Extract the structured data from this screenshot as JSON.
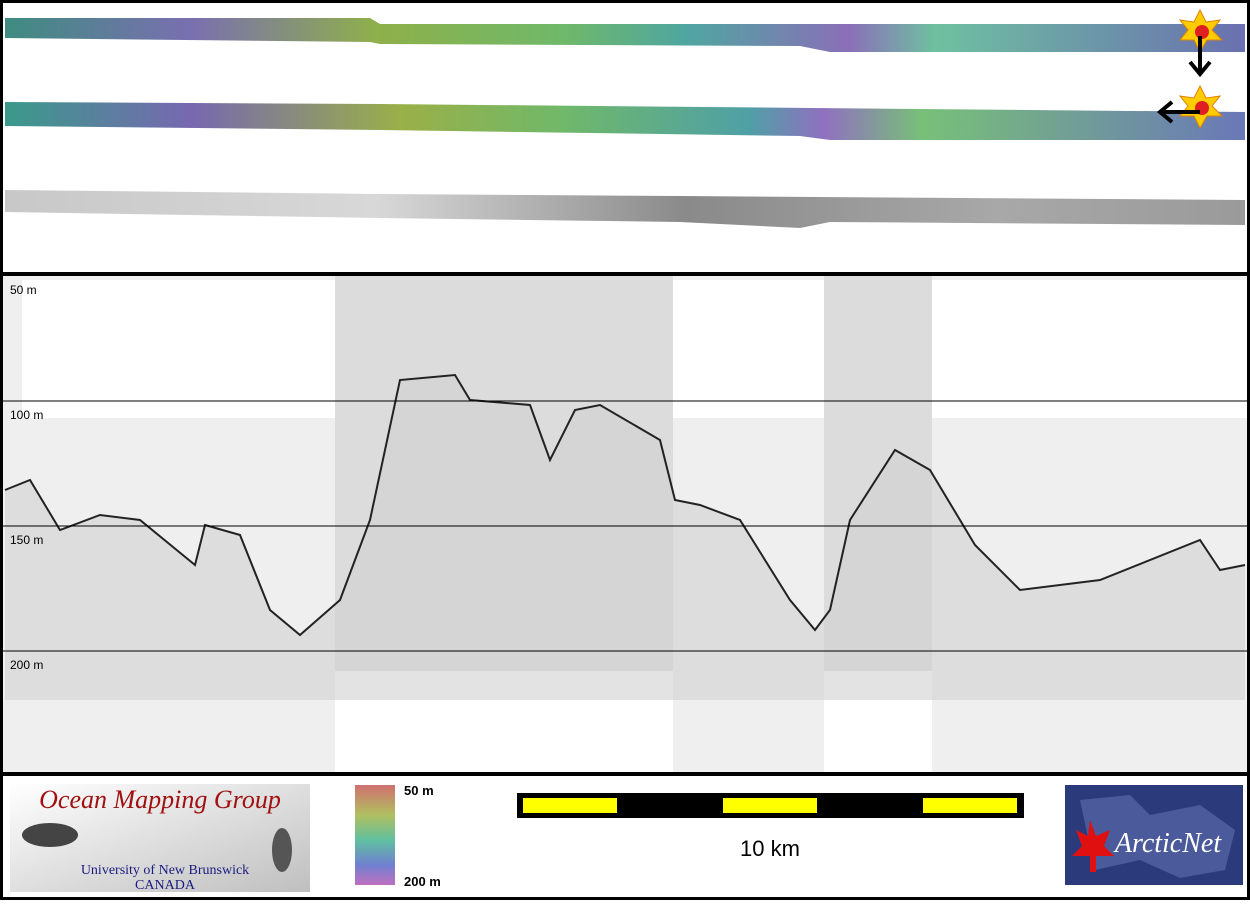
{
  "profile": {
    "depth_labels": [
      "50 m",
      "100 m",
      "150 m",
      "200 m"
    ]
  },
  "logo": {
    "title": "Ocean Mapping Group",
    "institution": "University of New Brunswick",
    "country": "CANADA"
  },
  "colorbar": {
    "top_label": "50 m",
    "bottom_label": "200 m"
  },
  "scalebar": {
    "label": "10 km"
  },
  "partner": {
    "name": "ArcticNet"
  }
}
